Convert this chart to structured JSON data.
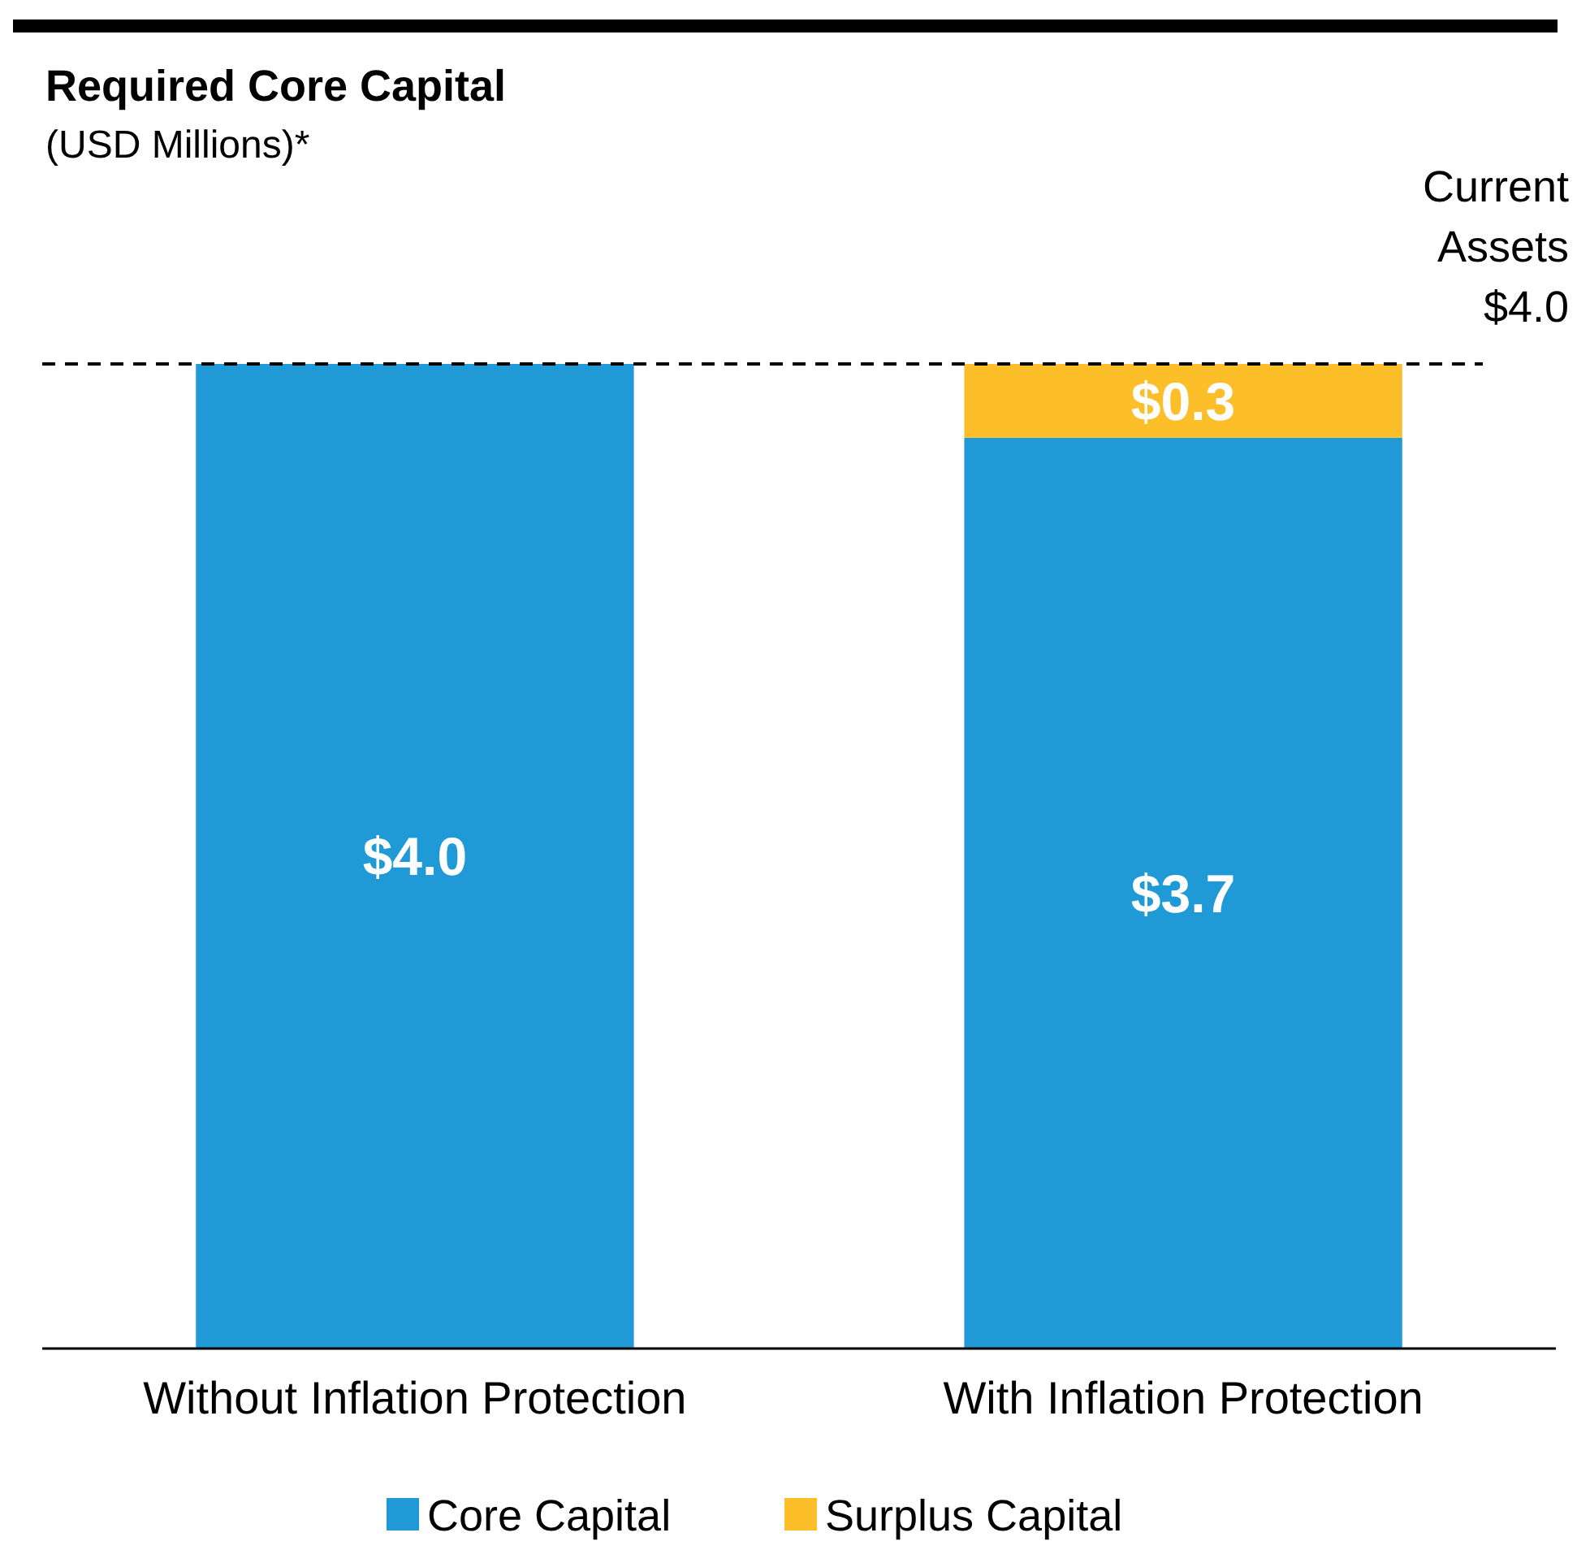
{
  "chart_data": {
    "type": "bar",
    "title": "Required Core Capital",
    "subtitle": "(USD Millions)*",
    "categories": [
      "Without Inflation Protection",
      "With Inflation Protection"
    ],
    "stacked": true,
    "ylim": [
      0,
      4.0
    ],
    "tick_labels": "x",
    "legend": "bottom",
    "series": [
      {
        "name": "Core Capital",
        "color": "#1f9ad6",
        "values": [
          4.0,
          3.7
        ],
        "value_labels": [
          "$4.0",
          "$3.7"
        ]
      },
      {
        "name": "Surplus Capital",
        "color": "#fcbf2a",
        "values": [
          null,
          0.3
        ],
        "value_labels": [
          null,
          "$0.3"
        ]
      }
    ],
    "ref_lines": [
      {
        "axis": "y",
        "value": 4.0,
        "label": "Current Assets $4.0",
        "line_style": "dashed",
        "color": "#000000"
      }
    ]
  }
}
